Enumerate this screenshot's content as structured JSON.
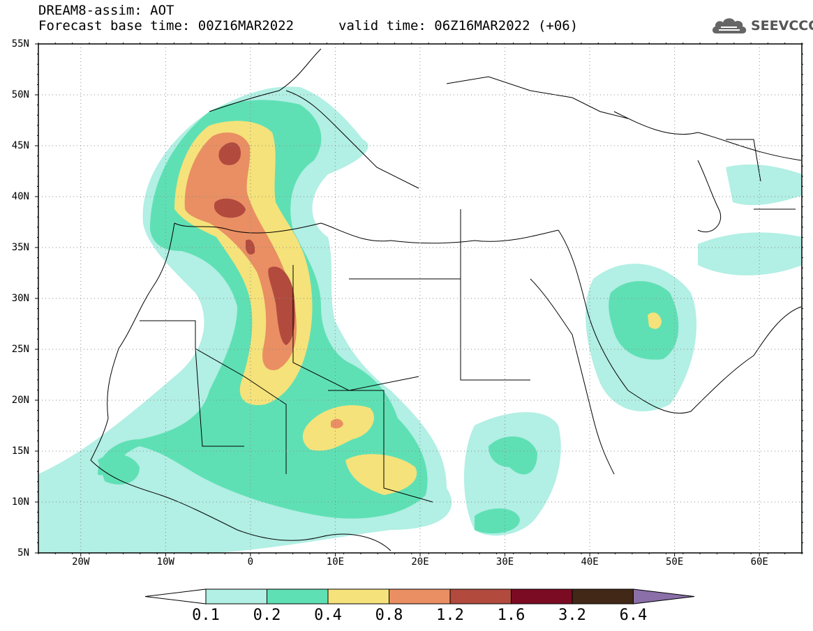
{
  "header": {
    "title": "DREAM8-assim: AOT",
    "base_time": "Forecast base time: 00Z16MAR2022",
    "valid_time": "valid time: 06Z16MAR2022 (+06)"
  },
  "logo": {
    "text": "SEEVCCC",
    "icon": "cloud-icon"
  },
  "map": {
    "lat_labels": [
      "55N",
      "50N",
      "45N",
      "40N",
      "35N",
      "30N",
      "25N",
      "20N",
      "15N",
      "10N",
      "5N"
    ],
    "lon_labels": [
      "20W",
      "10W",
      "0",
      "10E",
      "20E",
      "30E",
      "40E",
      "50E",
      "60E"
    ],
    "lon_range": [
      -25,
      65
    ],
    "lat_range": [
      5,
      55
    ],
    "grid": true
  },
  "colorbar": {
    "labels": [
      "0.1",
      "0.2",
      "0.4",
      "0.8",
      "1.2",
      "1.6",
      "3.2",
      "6.4"
    ],
    "colors": [
      "#ffffff",
      "#b2efe4",
      "#5fe0b4",
      "#f5e27a",
      "#e98f63",
      "#b24a3e",
      "#7a0b23",
      "#412817",
      "#8a6fa8"
    ]
  }
}
